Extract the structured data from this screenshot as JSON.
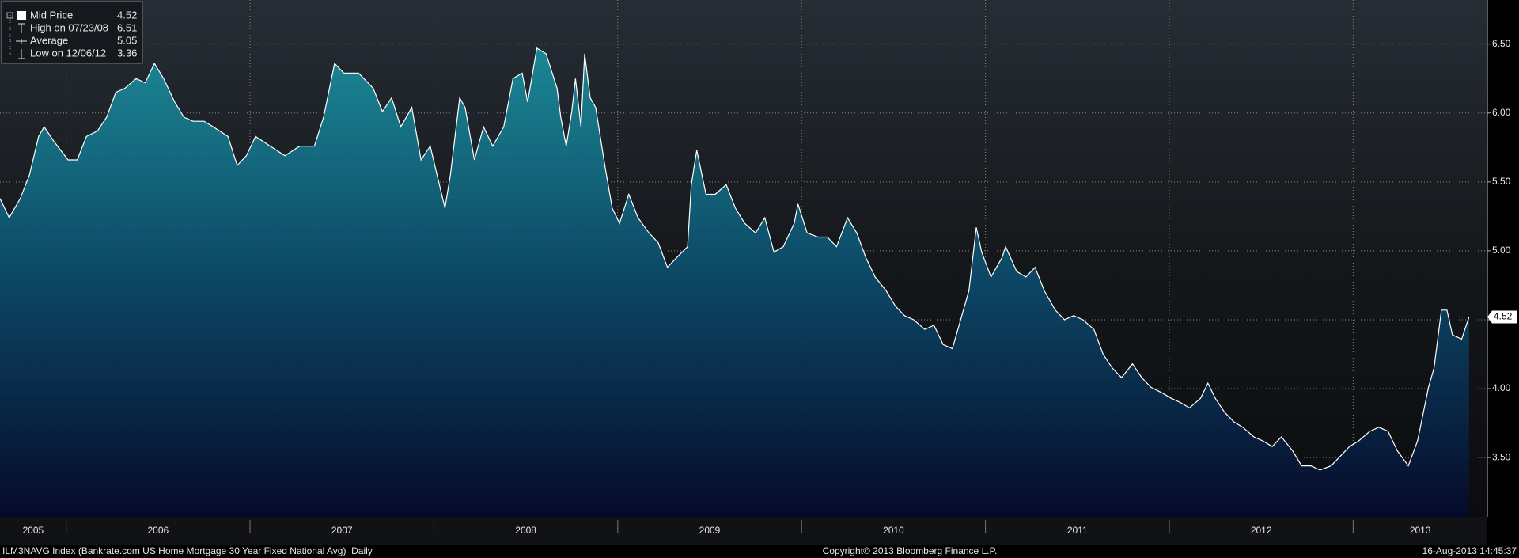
{
  "chart_data": {
    "type": "area",
    "series": [
      {
        "name": "Mid Price",
        "color": "#ffffff",
        "x": [
          2005.64,
          2005.69,
          2005.75,
          2005.8,
          2005.85,
          2005.88,
          2005.93,
          2006.01,
          2006.06,
          2006.11,
          2006.17,
          2006.22,
          2006.27,
          2006.32,
          2006.38,
          2006.43,
          2006.48,
          2006.53,
          2006.59,
          2006.64,
          2006.69,
          2006.75,
          2006.8,
          2006.88,
          2006.93,
          2006.98,
          2007.03,
          2007.11,
          2007.19,
          2007.27,
          2007.35,
          2007.4,
          2007.46,
          2007.51,
          2007.59,
          2007.67,
          2007.72,
          2007.77,
          2007.82,
          2007.88,
          2007.93,
          2007.98,
          2008.03,
          2008.06,
          2008.09,
          2008.14,
          2008.17,
          2008.22,
          2008.27,
          2008.32,
          2008.38,
          2008.43,
          2008.48,
          2008.51,
          2008.56,
          2008.61,
          2008.67,
          2008.69,
          2008.72,
          2008.75,
          2008.77,
          2008.8,
          2008.82,
          2008.85,
          2008.88,
          2008.93,
          2008.97,
          2009.01,
          2009.06,
          2009.11,
          2009.17,
          2009.22,
          2009.27,
          2009.32,
          2009.38,
          2009.4,
          2009.43,
          2009.48,
          2009.53,
          2009.59,
          2009.64,
          2009.69,
          2009.75,
          2009.8,
          2009.85,
          2009.9,
          2009.96,
          2009.98,
          2010.03,
          2010.09,
          2010.14,
          2010.19,
          2010.25,
          2010.3,
          2010.35,
          2010.4,
          2010.46,
          2010.51,
          2010.56,
          2010.61,
          2010.67,
          2010.72,
          2010.77,
          2010.82,
          2010.88,
          2010.91,
          2010.95,
          2010.98,
          2011.03,
          2011.09,
          2011.11,
          2011.17,
          2011.22,
          2011.27,
          2011.32,
          2011.38,
          2011.43,
          2011.48,
          2011.53,
          2011.59,
          2011.64,
          2011.69,
          2011.74,
          2011.8,
          2011.85,
          2011.9,
          2011.96,
          2012.01,
          2012.06,
          2012.11,
          2012.17,
          2012.21,
          2012.25,
          2012.3,
          2012.35,
          2012.4,
          2012.46,
          2012.51,
          2012.56,
          2012.61,
          2012.67,
          2012.72,
          2012.77,
          2012.82,
          2012.88,
          2012.93,
          2012.98,
          2013.03,
          2013.09,
          2013.14,
          2013.19,
          2013.24,
          2013.3,
          2013.35,
          2013.41,
          2013.44,
          2013.48,
          2013.51,
          2013.54,
          2013.59,
          2013.63
        ],
        "values": [
          5.38,
          5.24,
          5.38,
          5.55,
          5.83,
          5.9,
          5.8,
          5.66,
          5.66,
          5.83,
          5.87,
          5.97,
          6.15,
          6.18,
          6.25,
          6.22,
          6.36,
          6.25,
          6.08,
          5.97,
          5.94,
          5.94,
          5.9,
          5.83,
          5.62,
          5.69,
          5.83,
          5.76,
          5.69,
          5.76,
          5.76,
          5.97,
          6.36,
          6.29,
          6.29,
          6.18,
          6.01,
          6.11,
          5.9,
          6.04,
          5.66,
          5.76,
          5.48,
          5.31,
          5.55,
          6.11,
          6.04,
          5.66,
          5.9,
          5.76,
          5.9,
          6.25,
          6.29,
          6.08,
          6.47,
          6.43,
          6.18,
          5.97,
          5.76,
          6.01,
          6.25,
          5.9,
          6.43,
          6.11,
          6.04,
          5.62,
          5.31,
          5.2,
          5.41,
          5.24,
          5.13,
          5.06,
          4.88,
          4.95,
          5.03,
          5.48,
          5.73,
          5.41,
          5.41,
          5.48,
          5.31,
          5.2,
          5.13,
          5.24,
          4.99,
          5.03,
          5.2,
          5.34,
          5.13,
          5.1,
          5.1,
          5.03,
          5.24,
          5.13,
          4.95,
          4.81,
          4.71,
          4.6,
          4.53,
          4.5,
          4.43,
          4.46,
          4.32,
          4.29,
          4.57,
          4.71,
          5.17,
          4.99,
          4.81,
          4.95,
          5.03,
          4.85,
          4.81,
          4.88,
          4.71,
          4.57,
          4.5,
          4.53,
          4.5,
          4.43,
          4.25,
          4.15,
          4.08,
          4.18,
          4.08,
          4.01,
          3.97,
          3.93,
          3.9,
          3.86,
          3.93,
          4.04,
          3.93,
          3.83,
          3.76,
          3.72,
          3.65,
          3.62,
          3.58,
          3.65,
          3.55,
          3.44,
          3.44,
          3.41,
          3.44,
          3.51,
          3.58,
          3.62,
          3.69,
          3.72,
          3.69,
          3.55,
          3.44,
          3.62,
          4.01,
          4.15,
          4.57,
          4.57,
          4.39,
          4.36,
          4.52
        ]
      }
    ],
    "legend_entries": [
      {
        "label": "Mid Price"
      },
      {
        "label": "High on 07/23/08",
        "value": 6.51
      },
      {
        "label": "Average",
        "value": 5.05
      },
      {
        "label": "Low on 12/06/12",
        "value": 3.36
      }
    ],
    "xlim": [
      2005.64,
      2013.73
    ],
    "xticks": [
      2005,
      2006,
      2007,
      2008,
      2009,
      2010,
      2011,
      2012,
      2013
    ],
    "ylim": [
      3.07,
      6.82
    ],
    "yticks": [
      {
        "value": 3.5,
        "label": "3.50"
      },
      {
        "value": 4,
        "label": "4.00"
      },
      {
        "value": 4.5,
        "label": "4.50"
      },
      {
        "value": 5,
        "label": "5.00"
      },
      {
        "value": 5.5,
        "label": "5.50"
      },
      {
        "value": 6,
        "label": "6.00"
      },
      {
        "value": 6.5,
        "label": "6.50"
      }
    ],
    "grid": true,
    "footer_left": "ILM3NAVG Index (Bankrate.com US Home Mortgage 30 Year Fixed National Avg)  Daily",
    "footer_center": "Copyright© 2013 Bloomberg Finance L.P.",
    "footer_right": "16-Aug-2013 14:45:37"
  }
}
